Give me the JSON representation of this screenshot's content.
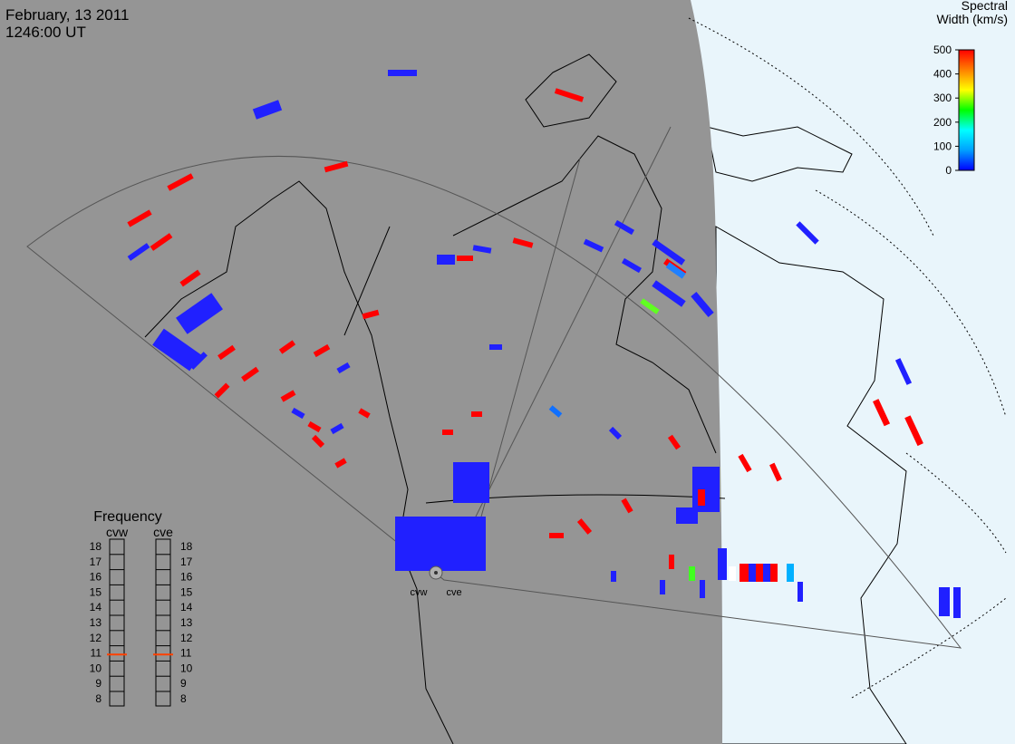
{
  "header": {
    "date": "February, 13 2011",
    "time": "1246:00 UT"
  },
  "colorbar": {
    "title": [
      "Spectral",
      "Width (km/s)"
    ],
    "lim": [
      0,
      500
    ],
    "ticks": [
      0,
      100,
      200,
      300,
      400,
      500
    ],
    "colors": [
      "#0000ff",
      "#00a0ff",
      "#00ffff",
      "#00ff00",
      "#ffff00",
      "#ff8000",
      "#ff0000"
    ]
  },
  "frequency": {
    "title": "Frequency",
    "lim": [
      8,
      18
    ],
    "ticks": [
      8,
      9,
      10,
      11,
      12,
      13,
      14,
      15,
      16,
      17,
      18
    ],
    "marker_color": "#ff4000",
    "radars": [
      {
        "name": "cvw",
        "value": 10.9
      },
      {
        "name": "cve",
        "value": 10.9
      }
    ]
  },
  "radar_labels": [
    "cvw",
    "cve"
  ]
}
